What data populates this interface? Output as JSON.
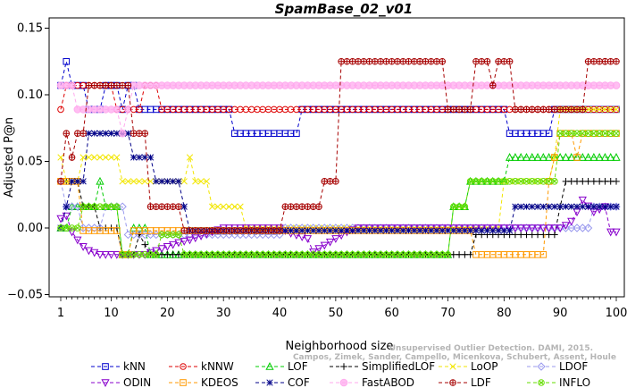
{
  "chart_data": {
    "type": "line",
    "title": "SpamBase_02_v01",
    "xlabel": "Neighborhood size",
    "ylabel": "Adjusted P@n",
    "xlim": [
      1,
      100
    ],
    "ylim": [
      -0.05,
      0.15
    ],
    "xticks": [
      1,
      10,
      20,
      30,
      40,
      50,
      60,
      70,
      80,
      90,
      100
    ],
    "yticks": [
      -0.05,
      0.0,
      0.05,
      0.1,
      0.15
    ],
    "ytick_labels": [
      "−0.05",
      "0.00",
      "0.05",
      "0.10",
      "0.15"
    ],
    "grid": false,
    "legend_position": "bottom",
    "watermark_line1": "Unsupervised Outlier Detection. DAMI, 2015.",
    "watermark_line2": "Campos, Zimek, Sander, Campello, Micenkova, Schubert, Assent, Houle",
    "series": [
      {
        "name": "kNN",
        "color": "#0000cc",
        "marker": "square",
        "points": [
          [
            1,
            0.107
          ],
          [
            2,
            0.125
          ],
          [
            3,
            0.107
          ],
          [
            5,
            0.107
          ],
          [
            6,
            0.089
          ],
          [
            8,
            0.089
          ],
          [
            9,
            0.107
          ],
          [
            11,
            0.107
          ],
          [
            12,
            0.089
          ],
          [
            13,
            0.107
          ],
          [
            14,
            0.107
          ],
          [
            15,
            0.089
          ],
          [
            31,
            0.089
          ],
          [
            32,
            0.071
          ],
          [
            43,
            0.071
          ],
          [
            44,
            0.089
          ],
          [
            80,
            0.089
          ],
          [
            81,
            0.071
          ],
          [
            88,
            0.071
          ],
          [
            89,
            0.089
          ],
          [
            100,
            0.089
          ]
        ]
      },
      {
        "name": "kNNW",
        "color": "#dd0000",
        "marker": "circle",
        "points": [
          [
            1,
            0.089
          ],
          [
            2,
            0.107
          ],
          [
            10,
            0.107
          ],
          [
            11,
            0.089
          ],
          [
            15,
            0.089
          ],
          [
            16,
            0.107
          ],
          [
            18,
            0.107
          ],
          [
            19,
            0.089
          ],
          [
            100,
            0.089
          ]
        ]
      },
      {
        "name": "LOF",
        "color": "#00cc00",
        "marker": "triangle-up",
        "points": [
          [
            1,
            0.0
          ],
          [
            2,
            0.0
          ],
          [
            3,
            0.016
          ],
          [
            7,
            0.016
          ],
          [
            8,
            0.035
          ],
          [
            9,
            0.016
          ],
          [
            11,
            0.016
          ],
          [
            12,
            -0.02
          ],
          [
            13,
            -0.02
          ],
          [
            14,
            0.0
          ],
          [
            16,
            0.0
          ],
          [
            17,
            -0.02
          ],
          [
            70,
            -0.02
          ],
          [
            71,
            0.016
          ],
          [
            73,
            0.016
          ],
          [
            74,
            0.035
          ],
          [
            80,
            0.035
          ],
          [
            81,
            0.053
          ],
          [
            100,
            0.053
          ]
        ]
      },
      {
        "name": "SimplifiedLOF",
        "color": "#000000",
        "marker": "plus",
        "points": [
          [
            1,
            0.035
          ],
          [
            2,
            0.035
          ],
          [
            4,
            0.035
          ],
          [
            5,
            0.016
          ],
          [
            7,
            0.016
          ],
          [
            8,
            0.0
          ],
          [
            11,
            0.0
          ],
          [
            12,
            -0.02
          ],
          [
            14,
            -0.02
          ],
          [
            15,
            -0.005
          ],
          [
            17,
            -0.02
          ],
          [
            66,
            -0.02
          ],
          [
            67,
            -0.02
          ],
          [
            68,
            -0.02
          ],
          [
            74,
            -0.02
          ],
          [
            75,
            -0.005
          ],
          [
            89,
            -0.005
          ],
          [
            90,
            0.016
          ],
          [
            91,
            0.035
          ],
          [
            100,
            0.035
          ]
        ]
      },
      {
        "name": "LoOP",
        "color": "#f2e600",
        "marker": "x",
        "points": [
          [
            1,
            0.053
          ],
          [
            2,
            0.035
          ],
          [
            4,
            0.035
          ],
          [
            5,
            0.053
          ],
          [
            11,
            0.053
          ],
          [
            12,
            0.035
          ],
          [
            23,
            0.035
          ],
          [
            24,
            0.053
          ],
          [
            25,
            0.035
          ],
          [
            27,
            0.035
          ],
          [
            28,
            0.016
          ],
          [
            33,
            0.016
          ],
          [
            34,
            0.0
          ],
          [
            79,
            0.0
          ],
          [
            80,
            0.035
          ],
          [
            88,
            0.035
          ],
          [
            89,
            0.053
          ],
          [
            90,
            0.089
          ],
          [
            100,
            0.089
          ]
        ]
      },
      {
        "name": "LDOF",
        "color": "#9999ee",
        "marker": "diamond",
        "points": [
          [
            1,
            0.035
          ],
          [
            2,
            0.016
          ],
          [
            4,
            0.016
          ],
          [
            5,
            0.0
          ],
          [
            8,
            0.0
          ],
          [
            9,
            0.016
          ],
          [
            12,
            0.016
          ],
          [
            13,
            -0.005
          ],
          [
            40,
            -0.005
          ],
          [
            41,
            0.0
          ],
          [
            89,
            0.0
          ],
          [
            90,
            0.0
          ],
          [
            95,
            0.0
          ],
          [
            96,
            0.016
          ],
          [
            100,
            0.016
          ]
        ]
      },
      {
        "name": "ODIN",
        "color": "#8800cc",
        "marker": "triangle-down",
        "points": [
          [
            1,
            0.007
          ],
          [
            2,
            0.009
          ],
          [
            3,
            -0.003
          ],
          [
            4,
            -0.009
          ],
          [
            5,
            -0.014
          ],
          [
            6,
            -0.017
          ],
          [
            8,
            -0.02
          ],
          [
            16,
            -0.02
          ],
          [
            18,
            -0.017
          ],
          [
            20,
            -0.014
          ],
          [
            22,
            -0.011
          ],
          [
            24,
            -0.009
          ],
          [
            26,
            -0.006
          ],
          [
            28,
            -0.003
          ],
          [
            30,
            0.0
          ],
          [
            40,
            0.0
          ],
          [
            42,
            -0.004
          ],
          [
            45,
            -0.008
          ],
          [
            46,
            -0.018
          ],
          [
            48,
            -0.013
          ],
          [
            50,
            -0.008
          ],
          [
            52,
            -0.003
          ],
          [
            54,
            0.0
          ],
          [
            88,
            0.0
          ],
          [
            90,
            0.0
          ],
          [
            91,
            0.002
          ],
          [
            92,
            0.005
          ],
          [
            93,
            0.012
          ],
          [
            94,
            0.021
          ],
          [
            96,
            0.012
          ],
          [
            98,
            0.016
          ],
          [
            99,
            -0.003
          ],
          [
            100,
            -0.003
          ]
        ]
      },
      {
        "name": "KDEOS",
        "color": "#ff9900",
        "marker": "square",
        "points": [
          [
            1,
            0.035
          ],
          [
            2,
            0.035
          ],
          [
            4,
            0.035
          ],
          [
            5,
            -0.002
          ],
          [
            11,
            -0.002
          ],
          [
            12,
            -0.02
          ],
          [
            13,
            -0.02
          ],
          [
            14,
            -0.002
          ],
          [
            74,
            -0.002
          ],
          [
            75,
            -0.02
          ],
          [
            87,
            -0.02
          ],
          [
            88,
            0.035
          ],
          [
            89,
            0.053
          ],
          [
            90,
            0.071
          ],
          [
            92,
            0.071
          ],
          [
            93,
            0.053
          ],
          [
            94,
            0.071
          ],
          [
            100,
            0.071
          ]
        ]
      },
      {
        "name": "COF",
        "color": "#000088",
        "marker": "star",
        "points": [
          [
            1,
            0.0
          ],
          [
            2,
            0.016
          ],
          [
            3,
            0.035
          ],
          [
            5,
            0.035
          ],
          [
            6,
            0.071
          ],
          [
            13,
            0.071
          ],
          [
            14,
            0.053
          ],
          [
            17,
            0.053
          ],
          [
            18,
            0.035
          ],
          [
            22,
            0.035
          ],
          [
            23,
            0.016
          ],
          [
            24,
            -0.002
          ],
          [
            81,
            -0.002
          ],
          [
            82,
            0.016
          ],
          [
            86,
            0.016
          ],
          [
            87,
            0.016
          ],
          [
            90,
            0.016
          ],
          [
            91,
            0.016
          ],
          [
            100,
            0.016
          ]
        ]
      },
      {
        "name": "FastABOD",
        "color": "#ffaaee",
        "marker": "circle-filled",
        "points": [
          [
            1,
            0.107
          ],
          [
            2,
            0.107
          ],
          [
            3,
            0.107
          ],
          [
            4,
            0.089
          ],
          [
            11,
            0.089
          ],
          [
            12,
            0.071
          ],
          [
            13,
            0.089
          ],
          [
            14,
            0.107
          ],
          [
            100,
            0.107
          ]
        ]
      },
      {
        "name": "LDF",
        "color": "#a60000",
        "marker": "circle-plus",
        "points": [
          [
            1,
            0.035
          ],
          [
            2,
            0.071
          ],
          [
            3,
            0.053
          ],
          [
            4,
            0.071
          ],
          [
            5,
            0.071
          ],
          [
            6,
            0.107
          ],
          [
            7,
            0.107
          ],
          [
            13,
            0.107
          ],
          [
            14,
            0.071
          ],
          [
            16,
            0.071
          ],
          [
            17,
            0.016
          ],
          [
            22,
            0.016
          ],
          [
            23,
            -0.002
          ],
          [
            40,
            -0.002
          ],
          [
            41,
            0.016
          ],
          [
            47,
            0.016
          ],
          [
            48,
            0.035
          ],
          [
            50,
            0.035
          ],
          [
            51,
            0.125
          ],
          [
            69,
            0.125
          ],
          [
            70,
            0.089
          ],
          [
            74,
            0.089
          ],
          [
            75,
            0.125
          ],
          [
            77,
            0.125
          ],
          [
            78,
            0.107
          ],
          [
            79,
            0.125
          ],
          [
            81,
            0.125
          ],
          [
            82,
            0.089
          ],
          [
            94,
            0.089
          ],
          [
            95,
            0.125
          ],
          [
            100,
            0.125
          ]
        ]
      },
      {
        "name": "INFLO",
        "color": "#66dd00",
        "marker": "circle-x",
        "points": [
          [
            1,
            0.0
          ],
          [
            2,
            0.0
          ],
          [
            3,
            0.0
          ],
          [
            4,
            0.0
          ],
          [
            5,
            0.016
          ],
          [
            11,
            0.016
          ],
          [
            12,
            -0.02
          ],
          [
            18,
            -0.02
          ],
          [
            19,
            -0.005
          ],
          [
            22,
            -0.005
          ],
          [
            23,
            -0.02
          ],
          [
            70,
            -0.02
          ],
          [
            71,
            0.016
          ],
          [
            73,
            0.016
          ],
          [
            74,
            0.035
          ],
          [
            86,
            0.035
          ],
          [
            87,
            0.035
          ],
          [
            89,
            0.035
          ],
          [
            90,
            0.071
          ],
          [
            100,
            0.071
          ]
        ]
      }
    ]
  }
}
